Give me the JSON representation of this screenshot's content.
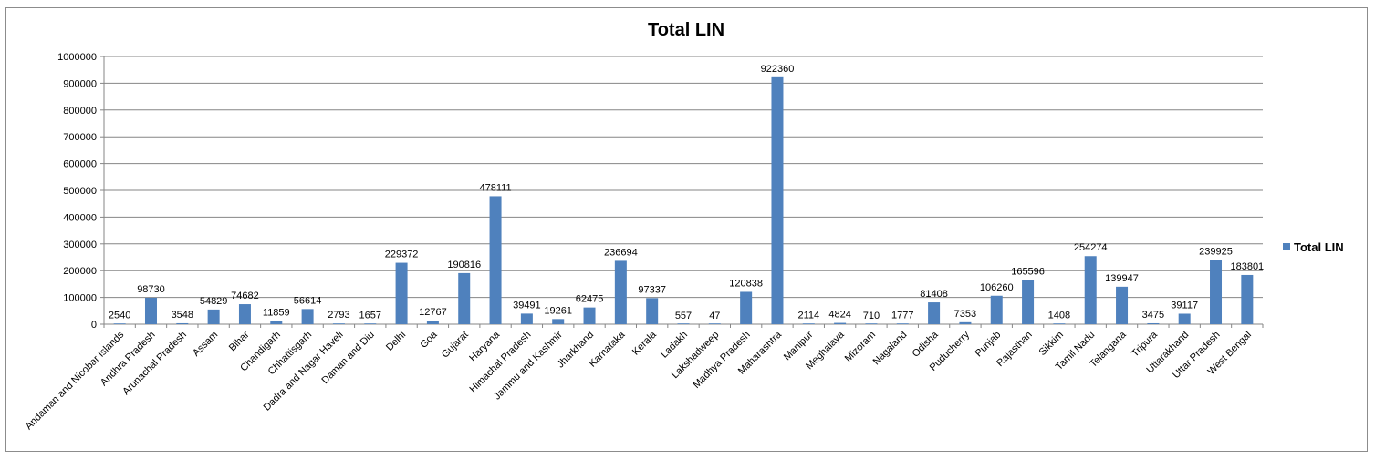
{
  "chart_data": {
    "type": "bar",
    "title": "Total LIN",
    "xlabel": "",
    "ylabel": "",
    "ylim": [
      0,
      1000000
    ],
    "y_ticks": [
      "0",
      "100000",
      "200000",
      "300000",
      "400000",
      "500000",
      "600000",
      "700000",
      "800000",
      "900000",
      "1000000"
    ],
    "grid": true,
    "legend_position": "right",
    "bar_color": "#4f81bd",
    "categories": [
      "Andaman and Nicobar Islands",
      "Andhra Pradesh",
      "Arunachal Pradesh",
      "Assam",
      "Bihar",
      "Chandigarh",
      "Chhattisgarh",
      "Dadra and Nagar Haveli",
      "Daman and Diu",
      "Delhi",
      "Goa",
      "Gujarat",
      "Haryana",
      "Himachal Pradesh",
      "Jammu and Kashmir",
      "Jharkhand",
      "Karnataka",
      "Kerala",
      "Ladakh",
      "Lakshadweep",
      "Madhya Pradesh",
      "Maharashtra",
      "Manipur",
      "Meghalaya",
      "Mizoram",
      "Nagaland",
      "Odisha",
      "Puducherry",
      "Punjab",
      "Rajasthan",
      "Sikkim",
      "Tamil Nadu",
      "Telangana",
      "Tripura",
      "Uttarakhand",
      "Uttar Pradesh",
      "West Bengal"
    ],
    "series": [
      {
        "name": "Total LIN",
        "values": [
          2540,
          98730,
          3548,
          54829,
          74682,
          11859,
          56614,
          2793,
          1657,
          229372,
          12767,
          190816,
          478111,
          39491,
          19261,
          62475,
          236694,
          97337,
          557,
          47,
          120838,
          922360,
          2114,
          4824,
          710,
          1777,
          81408,
          7353,
          106260,
          165596,
          1408,
          254274,
          139947,
          3475,
          39117,
          239925,
          183801
        ]
      }
    ]
  }
}
